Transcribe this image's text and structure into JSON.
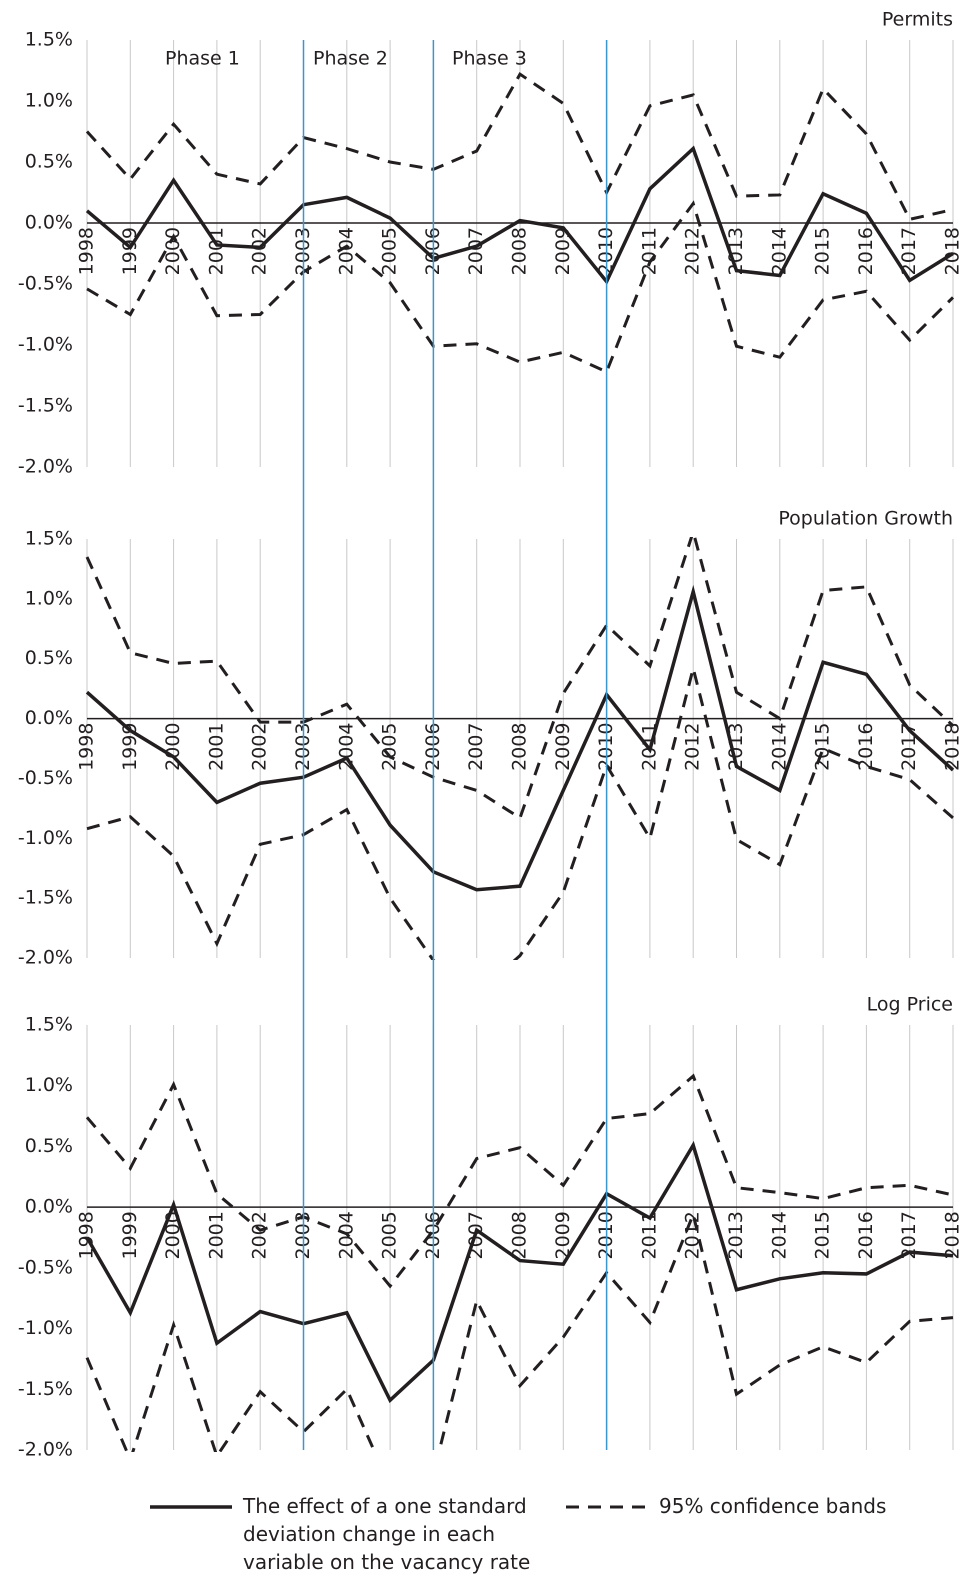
{
  "chart_data": [
    {
      "type": "line",
      "title": "Permits",
      "categories": [
        "1998",
        "1999",
        "2000",
        "2001",
        "2002",
        "2003",
        "2004",
        "2005",
        "2006",
        "2007",
        "2008",
        "2009",
        "2010",
        "2011",
        "2012",
        "2013",
        "2014",
        "2015",
        "2016",
        "2017",
        "2018"
      ],
      "series": [
        {
          "style": "solid",
          "color": "#231f20",
          "values": [
            0.1,
            -0.2,
            0.35,
            -0.18,
            -0.2,
            0.15,
            0.21,
            0.04,
            -0.29,
            -0.19,
            0.02,
            -0.04,
            -0.48,
            0.28,
            0.61,
            -0.39,
            -0.43,
            0.24,
            0.08,
            -0.47,
            -0.25
          ]
        },
        {
          "style": "dashed",
          "color": "#231f20",
          "values": [
            0.75,
            0.36,
            0.81,
            0.4,
            0.32,
            0.7,
            0.61,
            0.5,
            0.44,
            0.59,
            1.22,
            0.98,
            0.25,
            0.96,
            1.05,
            0.22,
            0.23,
            1.1,
            0.73,
            0.03,
            0.11
          ]
        },
        {
          "style": "dashed",
          "color": "#231f20",
          "values": [
            -0.54,
            -0.75,
            -0.11,
            -0.76,
            -0.75,
            -0.4,
            -0.19,
            -0.49,
            -1.01,
            -0.99,
            -1.14,
            -1.06,
            -1.22,
            -0.32,
            0.16,
            -1.01,
            -1.1,
            -0.63,
            -0.56,
            -0.96,
            -0.61
          ]
        }
      ],
      "ylim": [
        -2.0,
        1.5
      ],
      "yticks": [
        {
          "value": 1.5,
          "label": "1.5%"
        },
        {
          "value": 1.0,
          "label": "1.0%"
        },
        {
          "value": 0.5,
          "label": "0.5%"
        },
        {
          "value": 0,
          "label": "0.0%"
        },
        {
          "value": -0.5,
          "label": "-0.5%"
        },
        {
          "value": -1.0,
          "label": "-1.0%"
        },
        {
          "value": -1.5,
          "label": "-1.5%"
        },
        {
          "value": -2.0,
          "label": "-2.0%"
        }
      ],
      "grid": true
    },
    {
      "type": "line",
      "title": "Population Growth",
      "categories": [
        "1998",
        "1999",
        "2000",
        "2001",
        "2002",
        "2003",
        "2004",
        "2005",
        "2006",
        "2007",
        "2008",
        "2009",
        "2010",
        "2011",
        "2012",
        "2013",
        "2014",
        "2015",
        "2016",
        "2017",
        "2018"
      ],
      "series": [
        {
          "style": "solid",
          "color": "#231f20",
          "values": [
            0.22,
            -0.1,
            -0.32,
            -0.7,
            -0.54,
            -0.49,
            -0.33,
            -0.89,
            -1.28,
            -1.43,
            -1.4,
            -0.6,
            0.2,
            -0.26,
            1.06,
            -0.4,
            -0.6,
            0.47,
            0.37,
            -0.1,
            -0.43
          ]
        },
        {
          "style": "dashed",
          "color": "#231f20",
          "values": [
            1.35,
            0.55,
            0.46,
            0.48,
            -0.03,
            -0.03,
            0.12,
            -0.32,
            -0.49,
            -0.6,
            -0.83,
            0.21,
            0.78,
            0.44,
            1.56,
            0.22,
            0.0,
            1.07,
            1.1,
            0.28,
            -0.06
          ]
        },
        {
          "style": "dashed",
          "color": "#231f20",
          "values": [
            -0.92,
            -0.82,
            -1.15,
            -1.88,
            -1.05,
            -0.97,
            -0.76,
            -1.5,
            -2.02,
            -2.3,
            -1.98,
            -1.45,
            -0.39,
            -1.0,
            0.42,
            -1.01,
            -1.22,
            -0.25,
            -0.4,
            -0.51,
            -0.83
          ]
        }
      ],
      "ylim": [
        -2.0,
        1.5
      ],
      "yticks": [
        {
          "value": 1.5,
          "label": "1.5%"
        },
        {
          "value": 1.0,
          "label": "1.0%"
        },
        {
          "value": 0.5,
          "label": "0.5%"
        },
        {
          "value": 0,
          "label": "0.0%"
        },
        {
          "value": -0.5,
          "label": "-0.5%"
        },
        {
          "value": -1.0,
          "label": "-1.0%"
        },
        {
          "value": -1.5,
          "label": "-1.5%"
        },
        {
          "value": -2.0,
          "label": "-2.0%"
        }
      ],
      "grid": true
    },
    {
      "type": "line",
      "title": "Log Price",
      "categories": [
        "1998",
        "1999",
        "2000",
        "2001",
        "2002",
        "2003",
        "2004",
        "2005",
        "2006",
        "2007",
        "2008",
        "2009",
        "2010",
        "2011",
        "2012",
        "2013",
        "2014",
        "2015",
        "2016",
        "2017",
        "2018"
      ],
      "series": [
        {
          "style": "solid",
          "color": "#231f20",
          "values": [
            -0.25,
            -0.87,
            0.02,
            -1.12,
            -0.86,
            -0.96,
            -0.87,
            -1.59,
            -1.26,
            -0.19,
            -0.44,
            -0.47,
            0.11,
            -0.09,
            0.51,
            -0.68,
            -0.59,
            -0.54,
            -0.55,
            -0.37,
            -0.4
          ]
        },
        {
          "style": "dashed",
          "color": "#231f20",
          "values": [
            0.74,
            0.32,
            1.01,
            0.11,
            -0.19,
            -0.08,
            -0.22,
            -0.65,
            -0.19,
            0.4,
            0.49,
            0.18,
            0.73,
            0.77,
            1.08,
            0.16,
            0.12,
            0.07,
            0.16,
            0.18,
            0.1
          ]
        },
        {
          "style": "dashed",
          "color": "#231f20",
          "values": [
            -1.24,
            -2.08,
            -0.97,
            -2.05,
            -1.52,
            -1.85,
            -1.5,
            -2.3,
            -2.2,
            -0.77,
            -1.47,
            -1.07,
            -0.54,
            -0.95,
            -0.06,
            -1.54,
            -1.3,
            -1.15,
            -1.28,
            -0.94,
            -0.91
          ]
        }
      ],
      "ylim": [
        -2.0,
        1.5
      ],
      "yticks": [
        {
          "value": 1.5,
          "label": "1.5%"
        },
        {
          "value": 1.0,
          "label": "1.0%"
        },
        {
          "value": 0.5,
          "label": "0.5%"
        },
        {
          "value": 0,
          "label": "0.0%"
        },
        {
          "value": -0.5,
          "label": "-0.5%"
        },
        {
          "value": -1.0,
          "label": "-1.0%"
        },
        {
          "value": -1.5,
          "label": "-1.5%"
        },
        {
          "value": -2.0,
          "label": "-2.0%"
        }
      ],
      "grid": true
    }
  ],
  "phases": {
    "labels": [
      "Phase 1",
      "Phase 2",
      "Phase 3"
    ],
    "boundaries": [
      2003,
      2006,
      2010
    ],
    "color": "#3a96cf"
  },
  "legend": [
    {
      "style": "solid",
      "label": "The effect of a one standard deviation change in each variable on the vacancy rate"
    },
    {
      "style": "dashed",
      "label": "95% confidence bands"
    }
  ]
}
